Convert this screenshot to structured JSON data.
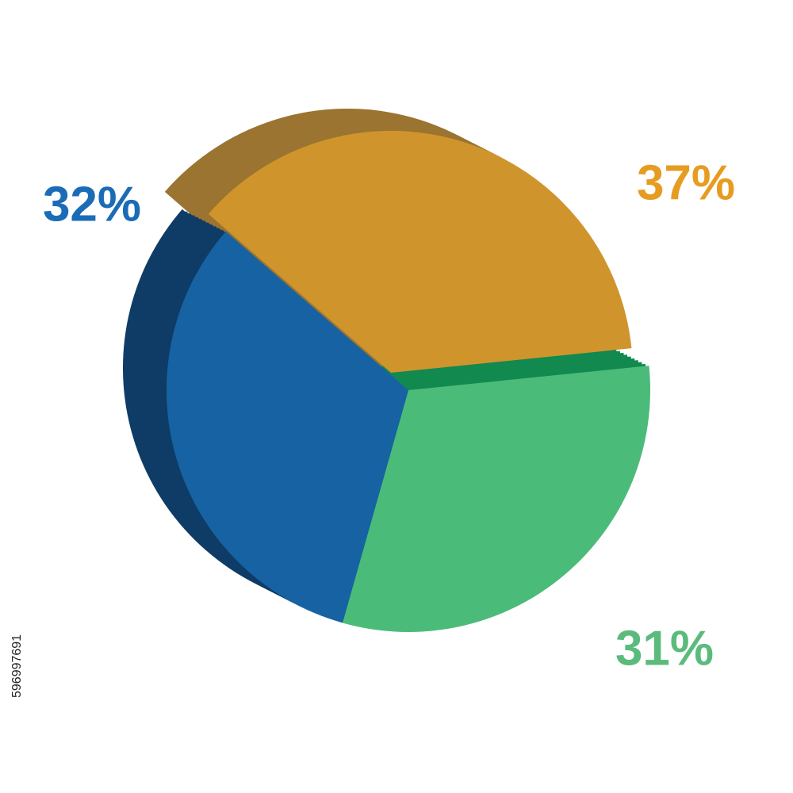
{
  "chart_data": {
    "type": "pie",
    "categories": [
      null,
      null,
      null
    ],
    "values": [
      37,
      31,
      32
    ],
    "value_labels": [
      "37%",
      "31%",
      "32%"
    ],
    "colors": [
      "#cf952c",
      "#4bbb7a",
      "#1662a3"
    ],
    "side_colors": [
      "#9a7430",
      "#11894f",
      "#0e3c66"
    ],
    "label_colors": [
      "#e69c21",
      "#5bbb7d",
      "#1b6cb6"
    ],
    "watermark": "596997691"
  }
}
